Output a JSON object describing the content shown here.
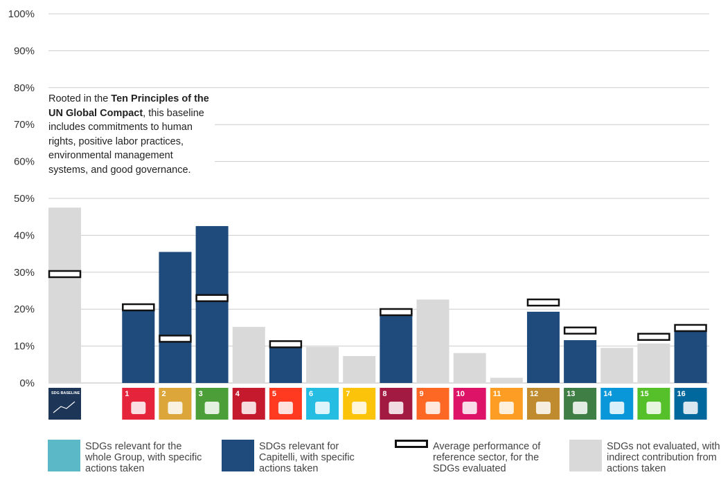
{
  "chart_data": {
    "type": "bar",
    "y_ticks": [
      "0%",
      "10%",
      "20%",
      "30%",
      "40%",
      "50%",
      "60%",
      "70%",
      "80%",
      "90%",
      "100%"
    ],
    "ylim": [
      0,
      100
    ],
    "grid": true,
    "categories": [
      {
        "id": "SDG baseline",
        "tile_text": "SDG BASELINE",
        "value": 47.5,
        "kind": "not_evaluated",
        "avg": 29.5,
        "tile_color": "#1d3557"
      },
      {
        "id": "gap",
        "tile_text": "",
        "value": null,
        "kind": "none",
        "avg": null,
        "tile_color": null
      },
      {
        "id": "SDG 1",
        "tile_text": "1",
        "value": 19.5,
        "kind": "capitelli",
        "avg": 20.5,
        "tile_color": "#e5243b"
      },
      {
        "id": "SDG 2",
        "tile_text": "2",
        "value": 35.5,
        "kind": "capitelli",
        "avg": 12.0,
        "tile_color": "#dda63a"
      },
      {
        "id": "SDG 3",
        "tile_text": "3",
        "value": 42.5,
        "kind": "capitelli",
        "avg": 23.0,
        "tile_color": "#4c9f38"
      },
      {
        "id": "SDG 4",
        "tile_text": "4",
        "value": 15.2,
        "kind": "not_evaluated",
        "avg": null,
        "tile_color": "#c5192d"
      },
      {
        "id": "SDG 5",
        "tile_text": "5",
        "value": 9.7,
        "kind": "capitelli",
        "avg": 10.5,
        "tile_color": "#ff3a21"
      },
      {
        "id": "SDG 6",
        "tile_text": "6",
        "value": 9.8,
        "kind": "not_evaluated",
        "avg": null,
        "tile_color": "#26bde2"
      },
      {
        "id": "SDG 7",
        "tile_text": "7",
        "value": 7.3,
        "kind": "not_evaluated",
        "avg": null,
        "tile_color": "#fcc30b"
      },
      {
        "id": "SDG 8",
        "tile_text": "8",
        "value": 18.5,
        "kind": "capitelli",
        "avg": 19.2,
        "tile_color": "#a21942"
      },
      {
        "id": "SDG 9",
        "tile_text": "9",
        "value": 22.6,
        "kind": "not_evaluated",
        "avg": null,
        "tile_color": "#fd6925"
      },
      {
        "id": "SDG 10",
        "tile_text": "10",
        "value": 8.1,
        "kind": "not_evaluated",
        "avg": null,
        "tile_color": "#dd1367"
      },
      {
        "id": "SDG 11",
        "tile_text": "11",
        "value": 1.4,
        "kind": "not_evaluated",
        "avg": null,
        "tile_color": "#fd9d24"
      },
      {
        "id": "SDG 12",
        "tile_text": "12",
        "value": 19.3,
        "kind": "capitelli",
        "avg": 21.8,
        "tile_color": "#bf8b2e"
      },
      {
        "id": "SDG 13",
        "tile_text": "13",
        "value": 11.6,
        "kind": "capitelli",
        "avg": 14.2,
        "tile_color": "#3f7e44"
      },
      {
        "id": "SDG 14",
        "tile_text": "14",
        "value": 9.5,
        "kind": "not_evaluated",
        "avg": null,
        "tile_color": "#0a97d9"
      },
      {
        "id": "SDG 15",
        "tile_text": "15",
        "value": 10.7,
        "kind": "not_evaluated",
        "avg": 12.5,
        "tile_color": "#56c02b"
      },
      {
        "id": "SDG 16",
        "tile_text": "16",
        "value": 14.0,
        "kind": "capitelli",
        "avg": 14.9,
        "tile_color": "#00689d"
      }
    ],
    "colors": {
      "group": "#5bb8c6",
      "capitelli": "#1f4a7c",
      "not_evaluated": "#d9d9d9",
      "avg_fill": "#ffffff",
      "avg_stroke": "#111111",
      "grid": "#cccccc",
      "tick_text": "#333333"
    }
  },
  "annotation": {
    "part1": "Rooted in the ",
    "bold": "Ten Principles of the UN Global Compact",
    "part2": ", this baseline includes commitments to human rights, positive labor practices, environmental management systems, and good governance."
  },
  "legend": [
    {
      "key": "group",
      "text": "SDGs relevant for the whole Group, with specific actions taken"
    },
    {
      "key": "capitelli",
      "text": "SDGs relevant for Capitelli, with specific actions taken"
    },
    {
      "key": "avg",
      "text": "Average performance of reference sector, for the SDGs evaluated"
    },
    {
      "key": "not_evaluated",
      "text": "SDGs not evaluated, with indirect contribution from actions taken"
    }
  ]
}
